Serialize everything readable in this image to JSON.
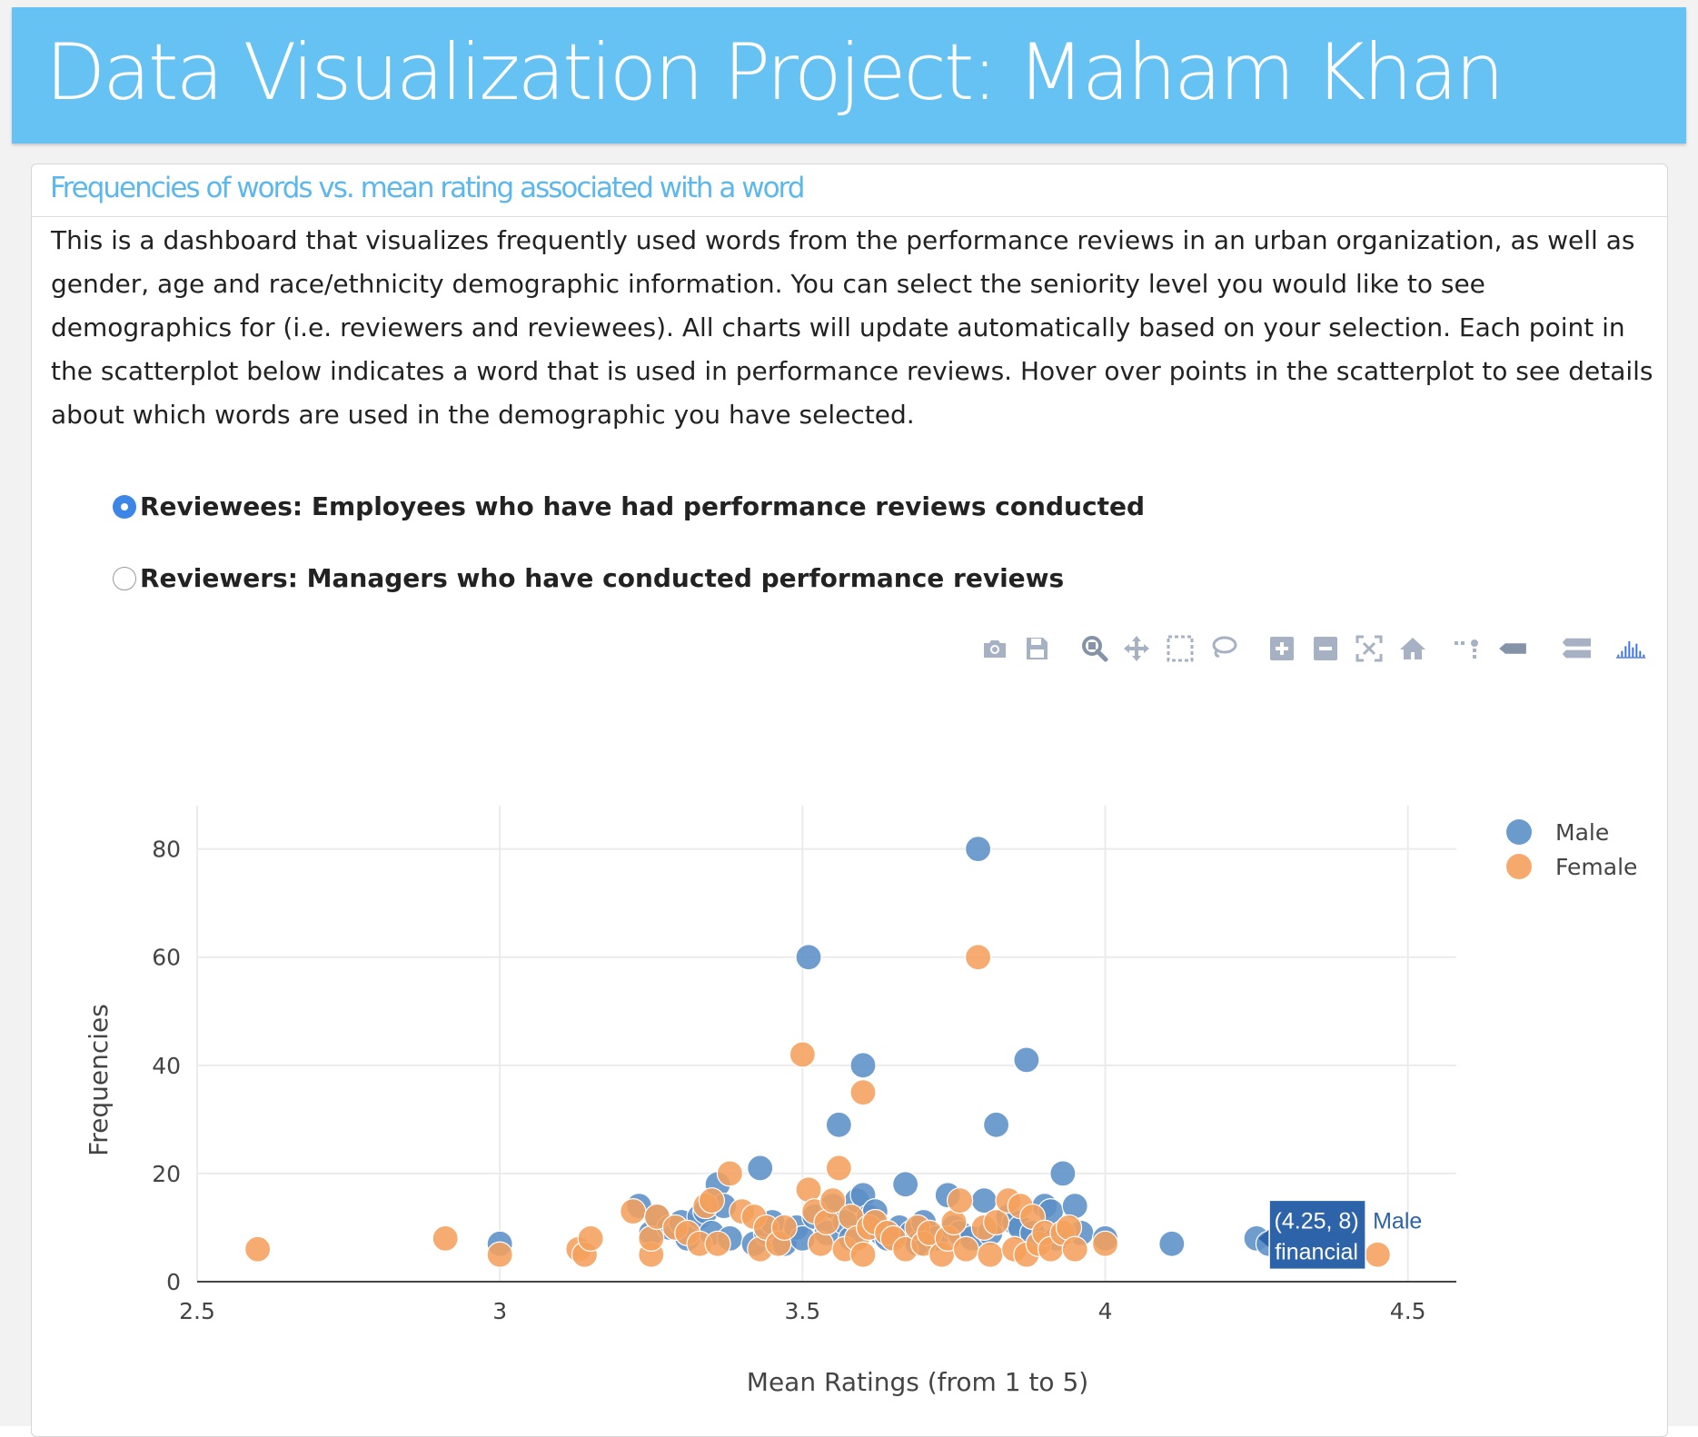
{
  "header": {
    "title": "Data Visualization Project: Maham Khan"
  },
  "panel": {
    "title": "Frequencies of words vs. mean rating associated with a word",
    "description": "This is a dashboard that visualizes frequently used words from the performance reviews in an urban organization, as well as gender, age and race/ethnicity demographic information. You can select the seniority level you would like to see demographics for (i.e. reviewers and reviewees). All charts will update automatically based on your selection. Each point in the scatterplot below indicates a word that is used in performance reviews. Hover over points in the scatterplot to see details about which words are used in the demographic you have selected."
  },
  "selector": {
    "options": [
      {
        "label": "Reviewees: Employees who have had performance reviews conducted",
        "selected": true
      },
      {
        "label": "Reviewers: Managers who have conducted performance reviews",
        "selected": false
      }
    ]
  },
  "modebar": {
    "buttons": [
      "camera-icon",
      "save-icon",
      "zoom-icon",
      "pan-icon",
      "box-select-icon",
      "lasso-icon",
      "zoom-in-icon",
      "zoom-out-icon",
      "autoscale-icon",
      "reset-axes-icon",
      "spike-lines-icon",
      "hover-closest-icon",
      "hover-compare-icon",
      "plotly-logo-icon"
    ],
    "icon_color": "#a6b2c4",
    "active_color": "#8593a8",
    "logo_color": "#3f74e0"
  },
  "chart_data": {
    "type": "scatter",
    "xlabel": "Mean Ratings (from 1 to 5)",
    "ylabel": "Frequencies",
    "xlim": [
      2.5,
      4.58
    ],
    "ylim": [
      0,
      88
    ],
    "xticks": [
      2.5,
      3,
      3.5,
      4,
      4.5
    ],
    "xtick_labels": [
      "2.5",
      "3",
      "3.5",
      "4",
      "4.5"
    ],
    "yticks": [
      0,
      20,
      40,
      60,
      80
    ],
    "ytick_labels": [
      "0",
      "20",
      "40",
      "60",
      "80"
    ],
    "grid": true,
    "legend_position": "top-right",
    "series": [
      {
        "name": "Male",
        "color": "#5b8fc7",
        "points": [
          [
            3.0,
            7
          ],
          [
            3.23,
            14
          ],
          [
            3.25,
            9
          ],
          [
            3.26,
            12
          ],
          [
            3.28,
            10
          ],
          [
            3.3,
            11
          ],
          [
            3.31,
            8
          ],
          [
            3.33,
            12
          ],
          [
            3.34,
            13
          ],
          [
            3.35,
            9
          ],
          [
            3.36,
            18
          ],
          [
            3.37,
            14
          ],
          [
            3.38,
            8
          ],
          [
            3.42,
            7
          ],
          [
            3.43,
            21
          ],
          [
            3.44,
            9
          ],
          [
            3.45,
            11
          ],
          [
            3.47,
            7
          ],
          [
            3.49,
            10
          ],
          [
            3.5,
            8
          ],
          [
            3.51,
            60
          ],
          [
            3.52,
            12
          ],
          [
            3.54,
            9
          ],
          [
            3.55,
            14
          ],
          [
            3.56,
            29
          ],
          [
            3.57,
            11
          ],
          [
            3.58,
            8
          ],
          [
            3.59,
            15
          ],
          [
            3.6,
            40
          ],
          [
            3.6,
            16
          ],
          [
            3.61,
            12
          ],
          [
            3.62,
            13
          ],
          [
            3.63,
            9
          ],
          [
            3.64,
            8
          ],
          [
            3.66,
            10
          ],
          [
            3.67,
            18
          ],
          [
            3.68,
            9
          ],
          [
            3.69,
            7
          ],
          [
            3.7,
            11
          ],
          [
            3.72,
            8
          ],
          [
            3.74,
            16
          ],
          [
            3.75,
            10
          ],
          [
            3.76,
            9
          ],
          [
            3.78,
            8
          ],
          [
            3.79,
            80
          ],
          [
            3.8,
            15
          ],
          [
            3.81,
            9
          ],
          [
            3.82,
            29
          ],
          [
            3.84,
            12
          ],
          [
            3.85,
            11
          ],
          [
            3.86,
            10
          ],
          [
            3.87,
            41
          ],
          [
            3.88,
            9
          ],
          [
            3.9,
            14
          ],
          [
            3.91,
            13
          ],
          [
            3.92,
            8
          ],
          [
            3.93,
            20
          ],
          [
            3.95,
            14
          ],
          [
            3.96,
            9
          ],
          [
            4.0,
            8
          ],
          [
            4.11,
            7
          ],
          [
            4.25,
            8
          ],
          [
            4.27,
            7
          ]
        ]
      },
      {
        "name": "Female",
        "color": "#f5a05c",
        "points": [
          [
            2.6,
            6
          ],
          [
            2.91,
            8
          ],
          [
            3.0,
            5
          ],
          [
            3.13,
            6
          ],
          [
            3.14,
            5
          ],
          [
            3.15,
            8
          ],
          [
            3.22,
            13
          ],
          [
            3.25,
            5
          ],
          [
            3.25,
            8
          ],
          [
            3.26,
            12
          ],
          [
            3.29,
            10
          ],
          [
            3.31,
            9
          ],
          [
            3.33,
            7
          ],
          [
            3.34,
            14
          ],
          [
            3.35,
            15
          ],
          [
            3.36,
            7
          ],
          [
            3.38,
            20
          ],
          [
            3.4,
            13
          ],
          [
            3.42,
            12
          ],
          [
            3.43,
            6
          ],
          [
            3.44,
            10
          ],
          [
            3.46,
            7
          ],
          [
            3.47,
            10
          ],
          [
            3.5,
            42
          ],
          [
            3.51,
            17
          ],
          [
            3.52,
            13
          ],
          [
            3.53,
            7
          ],
          [
            3.54,
            11
          ],
          [
            3.55,
            15
          ],
          [
            3.56,
            21
          ],
          [
            3.57,
            6
          ],
          [
            3.58,
            12
          ],
          [
            3.59,
            8
          ],
          [
            3.6,
            35
          ],
          [
            3.6,
            5
          ],
          [
            3.61,
            10
          ],
          [
            3.62,
            11
          ],
          [
            3.64,
            9
          ],
          [
            3.65,
            8
          ],
          [
            3.67,
            6
          ],
          [
            3.69,
            10
          ],
          [
            3.7,
            7
          ],
          [
            3.71,
            9
          ],
          [
            3.73,
            5
          ],
          [
            3.74,
            8
          ],
          [
            3.75,
            11
          ],
          [
            3.76,
            15
          ],
          [
            3.77,
            6
          ],
          [
            3.79,
            60
          ],
          [
            3.8,
            10
          ],
          [
            3.81,
            5
          ],
          [
            3.82,
            11
          ],
          [
            3.84,
            15
          ],
          [
            3.85,
            6
          ],
          [
            3.86,
            14
          ],
          [
            3.87,
            5
          ],
          [
            3.88,
            12
          ],
          [
            3.89,
            7
          ],
          [
            3.9,
            9
          ],
          [
            3.91,
            6
          ],
          [
            3.93,
            9
          ],
          [
            3.94,
            10
          ],
          [
            3.95,
            6
          ],
          [
            4.0,
            7
          ],
          [
            4.45,
            5
          ]
        ]
      }
    ],
    "hover": {
      "x": 4.25,
      "y": 8,
      "coords_label": "(4.25, 8)",
      "word": "financial",
      "series_name": "Male",
      "bg": "#2d63a8"
    }
  }
}
